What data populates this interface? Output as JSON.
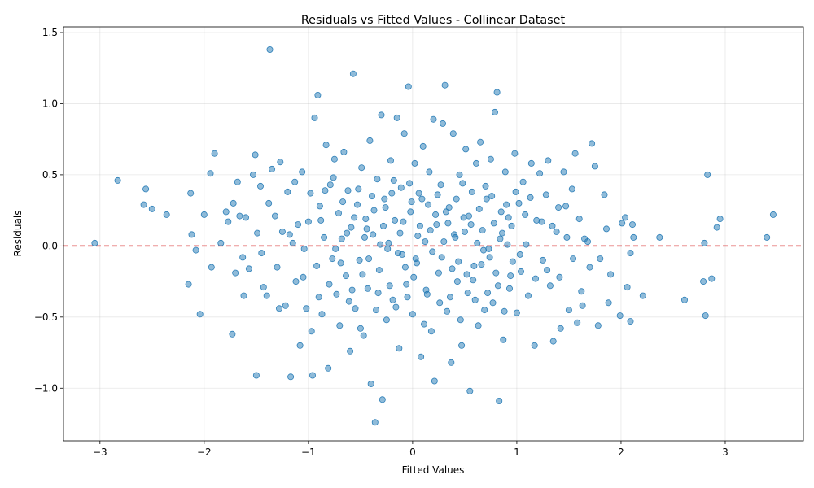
{
  "chart_data": {
    "type": "scatter",
    "title": "Residuals vs Fitted Values - Collinear Dataset",
    "xlabel": "Fitted Values",
    "ylabel": "Residuals",
    "xlim": [
      -3.35,
      3.75
    ],
    "ylim": [
      -1.37,
      1.54
    ],
    "xticks": [
      -3,
      -2,
      -1,
      0,
      1,
      2,
      3
    ],
    "xtick_labels": [
      "−3",
      "−2",
      "−1",
      "0",
      "1",
      "2",
      "3"
    ],
    "yticks": [
      -1.0,
      -0.5,
      0.0,
      0.5,
      1.0,
      1.5
    ],
    "ytick_labels": [
      "−1.0",
      "−0.5",
      "0.0",
      "0.5",
      "1.0",
      "1.5"
    ],
    "grid": true,
    "reference_line": {
      "y": 0,
      "color": "#d62728",
      "style": "dashed"
    },
    "point_color": "#1f77b4",
    "point_alpha": 0.5,
    "points": [
      [
        -3.05,
        0.02
      ],
      [
        -2.83,
        0.46
      ],
      [
        -2.56,
        0.4
      ],
      [
        -2.58,
        0.29
      ],
      [
        -2.5,
        0.26
      ],
      [
        -2.36,
        0.22
      ],
      [
        -2.15,
        -0.27
      ],
      [
        -2.13,
        0.37
      ],
      [
        -2.12,
        0.08
      ],
      [
        -2.08,
        -0.03
      ],
      [
        -2.04,
        -0.48
      ],
      [
        -2.0,
        0.22
      ],
      [
        -1.94,
        0.51
      ],
      [
        -1.93,
        -0.15
      ],
      [
        -1.9,
        0.65
      ],
      [
        -1.84,
        0.02
      ],
      [
        -1.79,
        0.24
      ],
      [
        -1.77,
        0.17
      ],
      [
        -1.73,
        -0.62
      ],
      [
        -1.72,
        0.3
      ],
      [
        -1.7,
        -0.19
      ],
      [
        -1.68,
        0.45
      ],
      [
        -1.66,
        0.21
      ],
      [
        -1.63,
        -0.08
      ],
      [
        -1.6,
        0.2
      ],
      [
        -1.57,
        -0.16
      ],
      [
        -1.53,
        0.5
      ],
      [
        -1.51,
        0.64
      ],
      [
        -1.5,
        -0.91
      ],
      [
        -1.49,
        0.09
      ],
      [
        -1.46,
        0.42
      ],
      [
        -1.43,
        -0.29
      ],
      [
        -1.4,
        -0.35
      ],
      [
        -1.37,
        1.38
      ],
      [
        -1.35,
        0.54
      ],
      [
        -1.32,
        0.21
      ],
      [
        -1.3,
        -0.15
      ],
      [
        -1.27,
        0.59
      ],
      [
        -1.25,
        0.1
      ],
      [
        -1.22,
        -0.42
      ],
      [
        -1.2,
        0.38
      ],
      [
        -1.17,
        -0.92
      ],
      [
        -1.15,
        0.02
      ],
      [
        -1.12,
        -0.25
      ],
      [
        -1.1,
        0.15
      ],
      [
        -1.08,
        -0.7
      ],
      [
        -1.06,
        0.52
      ],
      [
        -1.04,
        -0.02
      ],
      [
        -1.02,
        -0.44
      ],
      [
        -1.0,
        0.17
      ],
      [
        -0.98,
        0.37
      ],
      [
        -0.96,
        -0.91
      ],
      [
        -0.94,
        0.9
      ],
      [
        -0.92,
        -0.14
      ],
      [
        -0.91,
        1.06
      ],
      [
        -0.89,
        0.28
      ],
      [
        -0.87,
        -0.48
      ],
      [
        -0.85,
        0.06
      ],
      [
        -0.83,
        0.71
      ],
      [
        -0.81,
        -0.86
      ],
      [
        -0.79,
        0.43
      ],
      [
        -0.77,
        -0.09
      ],
      [
        -0.75,
        0.61
      ],
      [
        -0.73,
        -0.34
      ],
      [
        -0.71,
        0.23
      ],
      [
        -0.7,
        -0.56
      ],
      [
        -0.68,
        0.05
      ],
      [
        -0.66,
        0.66
      ],
      [
        -0.64,
        -0.21
      ],
      [
        -0.62,
        0.39
      ],
      [
        -0.6,
        -0.74
      ],
      [
        -0.59,
        0.13
      ],
      [
        -0.57,
        1.21
      ],
      [
        -0.55,
        -0.44
      ],
      [
        -0.53,
        0.29
      ],
      [
        -0.51,
        -0.1
      ],
      [
        -0.49,
        0.55
      ],
      [
        -0.47,
        -0.63
      ],
      [
        -0.45,
        0.19
      ],
      [
        -0.43,
        -0.3
      ],
      [
        -0.41,
        0.74
      ],
      [
        -0.4,
        -0.97
      ],
      [
        -0.38,
        0.08
      ],
      [
        -0.36,
        -1.24
      ],
      [
        -0.34,
        0.47
      ],
      [
        -0.32,
        -0.17
      ],
      [
        -0.3,
        0.92
      ],
      [
        -0.29,
        -1.08
      ],
      [
        -0.27,
        0.33
      ],
      [
        -0.25,
        -0.52
      ],
      [
        -0.23,
        0.02
      ],
      [
        -0.21,
        0.6
      ],
      [
        -0.19,
        -0.38
      ],
      [
        -0.17,
        0.18
      ],
      [
        -0.15,
        0.9
      ],
      [
        -0.13,
        -0.72
      ],
      [
        -0.11,
        0.41
      ],
      [
        -0.1,
        -0.06
      ],
      [
        -0.08,
        0.79
      ],
      [
        -0.06,
        -0.27
      ],
      [
        -0.04,
        1.12
      ],
      [
        -0.02,
        0.24
      ],
      [
        0.0,
        -0.48
      ],
      [
        0.02,
        0.58
      ],
      [
        0.04,
        -0.12
      ],
      [
        0.06,
        0.37
      ],
      [
        0.08,
        -0.78
      ],
      [
        0.1,
        0.7
      ],
      [
        0.12,
        0.03
      ],
      [
        0.14,
        -0.34
      ],
      [
        0.16,
        0.52
      ],
      [
        0.18,
        -0.6
      ],
      [
        0.2,
        0.89
      ],
      [
        0.21,
        -0.95
      ],
      [
        0.23,
        0.15
      ],
      [
        0.25,
        -0.19
      ],
      [
        0.27,
        0.43
      ],
      [
        0.29,
        0.86
      ],
      [
        0.31,
        1.13
      ],
      [
        0.33,
        -0.46
      ],
      [
        0.35,
        0.27
      ],
      [
        0.37,
        -0.82
      ],
      [
        0.39,
        0.79
      ],
      [
        0.41,
        0.06
      ],
      [
        0.43,
        -0.25
      ],
      [
        0.45,
        0.5
      ],
      [
        0.47,
        -0.7
      ],
      [
        0.49,
        0.2
      ],
      [
        0.51,
        0.68
      ],
      [
        0.53,
        -0.33
      ],
      [
        0.55,
        -1.02
      ],
      [
        0.57,
        0.38
      ],
      [
        0.59,
        -0.14
      ],
      [
        0.61,
        0.58
      ],
      [
        0.63,
        -0.56
      ],
      [
        0.65,
        0.73
      ],
      [
        0.67,
        0.11
      ],
      [
        0.69,
        -0.45
      ],
      [
        0.71,
        0.33
      ],
      [
        0.73,
        -0.02
      ],
      [
        0.75,
        0.61
      ],
      [
        0.77,
        -0.4
      ],
      [
        0.79,
        0.94
      ],
      [
        0.81,
        1.08
      ],
      [
        0.83,
        -1.09
      ],
      [
        0.85,
        0.24
      ],
      [
        0.87,
        -0.66
      ],
      [
        0.89,
        0.52
      ],
      [
        0.91,
        0.01
      ],
      [
        0.93,
        -0.3
      ],
      [
        0.95,
        0.14
      ],
      [
        0.98,
        0.65
      ],
      [
        1.0,
        -0.47
      ],
      [
        1.02,
        0.3
      ],
      [
        1.04,
        -0.18
      ],
      [
        1.06,
        0.45
      ],
      [
        1.09,
        0.01
      ],
      [
        1.11,
        -0.35
      ],
      [
        1.14,
        0.58
      ],
      [
        1.17,
        -0.7
      ],
      [
        1.19,
        0.18
      ],
      [
        1.22,
        0.51
      ],
      [
        1.25,
        -0.1
      ],
      [
        1.28,
        0.36
      ],
      [
        1.3,
        0.6
      ],
      [
        1.32,
        -0.28
      ],
      [
        1.35,
        -0.67
      ],
      [
        1.38,
        0.1
      ],
      [
        1.4,
        0.27
      ],
      [
        1.42,
        -0.58
      ],
      [
        1.45,
        0.52
      ],
      [
        1.48,
        0.06
      ],
      [
        1.5,
        -0.45
      ],
      [
        1.53,
        0.4
      ],
      [
        1.56,
        0.65
      ],
      [
        1.58,
        -0.54
      ],
      [
        1.6,
        0.19
      ],
      [
        1.63,
        -0.42
      ],
      [
        1.65,
        0.05
      ],
      [
        1.7,
        -0.15
      ],
      [
        1.72,
        0.72
      ],
      [
        1.75,
        0.56
      ],
      [
        1.78,
        -0.56
      ],
      [
        1.8,
        -0.09
      ],
      [
        1.84,
        0.36
      ],
      [
        1.86,
        0.12
      ],
      [
        1.88,
        -0.4
      ],
      [
        1.9,
        -0.2
      ],
      [
        1.99,
        -0.49
      ],
      [
        2.01,
        0.16
      ],
      [
        2.04,
        0.2
      ],
      [
        2.06,
        -0.29
      ],
      [
        2.09,
        -0.05
      ],
      [
        2.09,
        -0.53
      ],
      [
        2.11,
        0.15
      ],
      [
        2.12,
        0.06
      ],
      [
        2.21,
        -0.35
      ],
      [
        2.37,
        0.06
      ],
      [
        2.61,
        -0.38
      ],
      [
        2.79,
        -0.25
      ],
      [
        2.8,
        0.02
      ],
      [
        2.81,
        -0.49
      ],
      [
        2.83,
        0.5
      ],
      [
        2.87,
        -0.23
      ],
      [
        2.92,
        0.13
      ],
      [
        2.95,
        0.19
      ],
      [
        3.4,
        0.06
      ],
      [
        3.46,
        0.22
      ],
      [
        -1.62,
        -0.35
      ],
      [
        -1.45,
        -0.05
      ],
      [
        -1.38,
        0.3
      ],
      [
        -1.28,
        -0.44
      ],
      [
        -1.18,
        0.08
      ],
      [
        -1.13,
        0.45
      ],
      [
        -1.05,
        -0.22
      ],
      [
        -0.97,
        -0.6
      ],
      [
        -0.88,
        0.18
      ],
      [
        -0.8,
        -0.27
      ],
      [
        -0.76,
        0.48
      ],
      [
        -0.69,
        -0.12
      ],
      [
        -0.63,
        0.09
      ],
      [
        -0.58,
        -0.31
      ],
      [
        -0.52,
        0.4
      ],
      [
        -0.48,
        -0.2
      ],
      [
        -0.44,
        0.12
      ],
      [
        -0.39,
        0.35
      ],
      [
        -0.35,
        -0.45
      ],
      [
        -0.31,
        0.01
      ],
      [
        -0.26,
        0.27
      ],
      [
        -0.22,
        -0.28
      ],
      [
        -0.18,
        0.46
      ],
      [
        -0.14,
        -0.05
      ],
      [
        -0.09,
        0.17
      ],
      [
        -0.05,
        -0.36
      ],
      [
        -0.01,
        0.31
      ],
      [
        0.03,
        -0.09
      ],
      [
        0.07,
        0.14
      ],
      [
        0.11,
        -0.55
      ],
      [
        0.15,
        0.29
      ],
      [
        0.19,
        -0.04
      ],
      [
        0.22,
        0.22
      ],
      [
        0.26,
        -0.4
      ],
      [
        0.3,
        0.03
      ],
      [
        0.34,
        0.16
      ],
      [
        0.38,
        -0.16
      ],
      [
        0.42,
        0.33
      ],
      [
        0.46,
        -0.52
      ],
      [
        0.5,
        0.1
      ],
      [
        0.54,
        0.21
      ],
      [
        0.58,
        -0.24
      ],
      [
        0.62,
        0.02
      ],
      [
        0.66,
        -0.13
      ],
      [
        0.7,
        0.42
      ],
      [
        0.74,
        -0.08
      ],
      [
        0.78,
        0.16
      ],
      [
        0.82,
        -0.28
      ],
      [
        0.86,
        0.09
      ],
      [
        0.9,
        0.29
      ],
      [
        0.94,
        -0.21
      ],
      [
        0.99,
        0.38
      ],
      [
        1.03,
        -0.06
      ],
      [
        1.08,
        0.22
      ],
      [
        1.13,
        0.34
      ],
      [
        1.18,
        -0.23
      ],
      [
        1.24,
        0.17
      ],
      [
        1.29,
        -0.17
      ],
      [
        1.34,
        0.14
      ],
      [
        1.41,
        -0.22
      ],
      [
        1.47,
        0.28
      ],
      [
        1.54,
        -0.09
      ],
      [
        1.62,
        -0.32
      ],
      [
        1.68,
        0.03
      ],
      [
        -0.9,
        -0.36
      ],
      [
        -0.84,
        0.39
      ],
      [
        -0.74,
        -0.02
      ],
      [
        -0.67,
        0.31
      ],
      [
        -0.61,
        -0.39
      ],
      [
        -0.56,
        0.2
      ],
      [
        -0.5,
        -0.58
      ],
      [
        -0.46,
        0.06
      ],
      [
        -0.42,
        -0.09
      ],
      [
        -0.37,
        0.25
      ],
      [
        -0.33,
        -0.33
      ],
      [
        -0.28,
        0.14
      ],
      [
        -0.24,
        -0.02
      ],
      [
        -0.2,
        0.37
      ],
      [
        -0.16,
        -0.43
      ],
      [
        -0.12,
        0.09
      ],
      [
        -0.07,
        -0.15
      ],
      [
        -0.03,
        0.44
      ],
      [
        0.01,
        -0.22
      ],
      [
        0.05,
        0.07
      ],
      [
        0.09,
        0.33
      ],
      [
        0.13,
        -0.31
      ],
      [
        0.17,
        0.11
      ],
      [
        0.24,
        0.36
      ],
      [
        0.28,
        -0.08
      ],
      [
        0.32,
        0.24
      ],
      [
        0.36,
        -0.36
      ],
      [
        0.4,
        0.08
      ],
      [
        0.44,
        -0.11
      ],
      [
        0.48,
        0.44
      ],
      [
        0.52,
        -0.2
      ],
      [
        0.56,
        0.15
      ],
      [
        0.6,
        -0.38
      ],
      [
        0.64,
        0.26
      ],
      [
        0.68,
        -0.03
      ],
      [
        0.72,
        -0.33
      ],
      [
        0.76,
        0.35
      ],
      [
        0.8,
        -0.19
      ],
      [
        0.84,
        0.05
      ],
      [
        0.88,
        -0.46
      ],
      [
        0.92,
        0.2
      ],
      [
        0.96,
        -0.11
      ]
    ]
  }
}
